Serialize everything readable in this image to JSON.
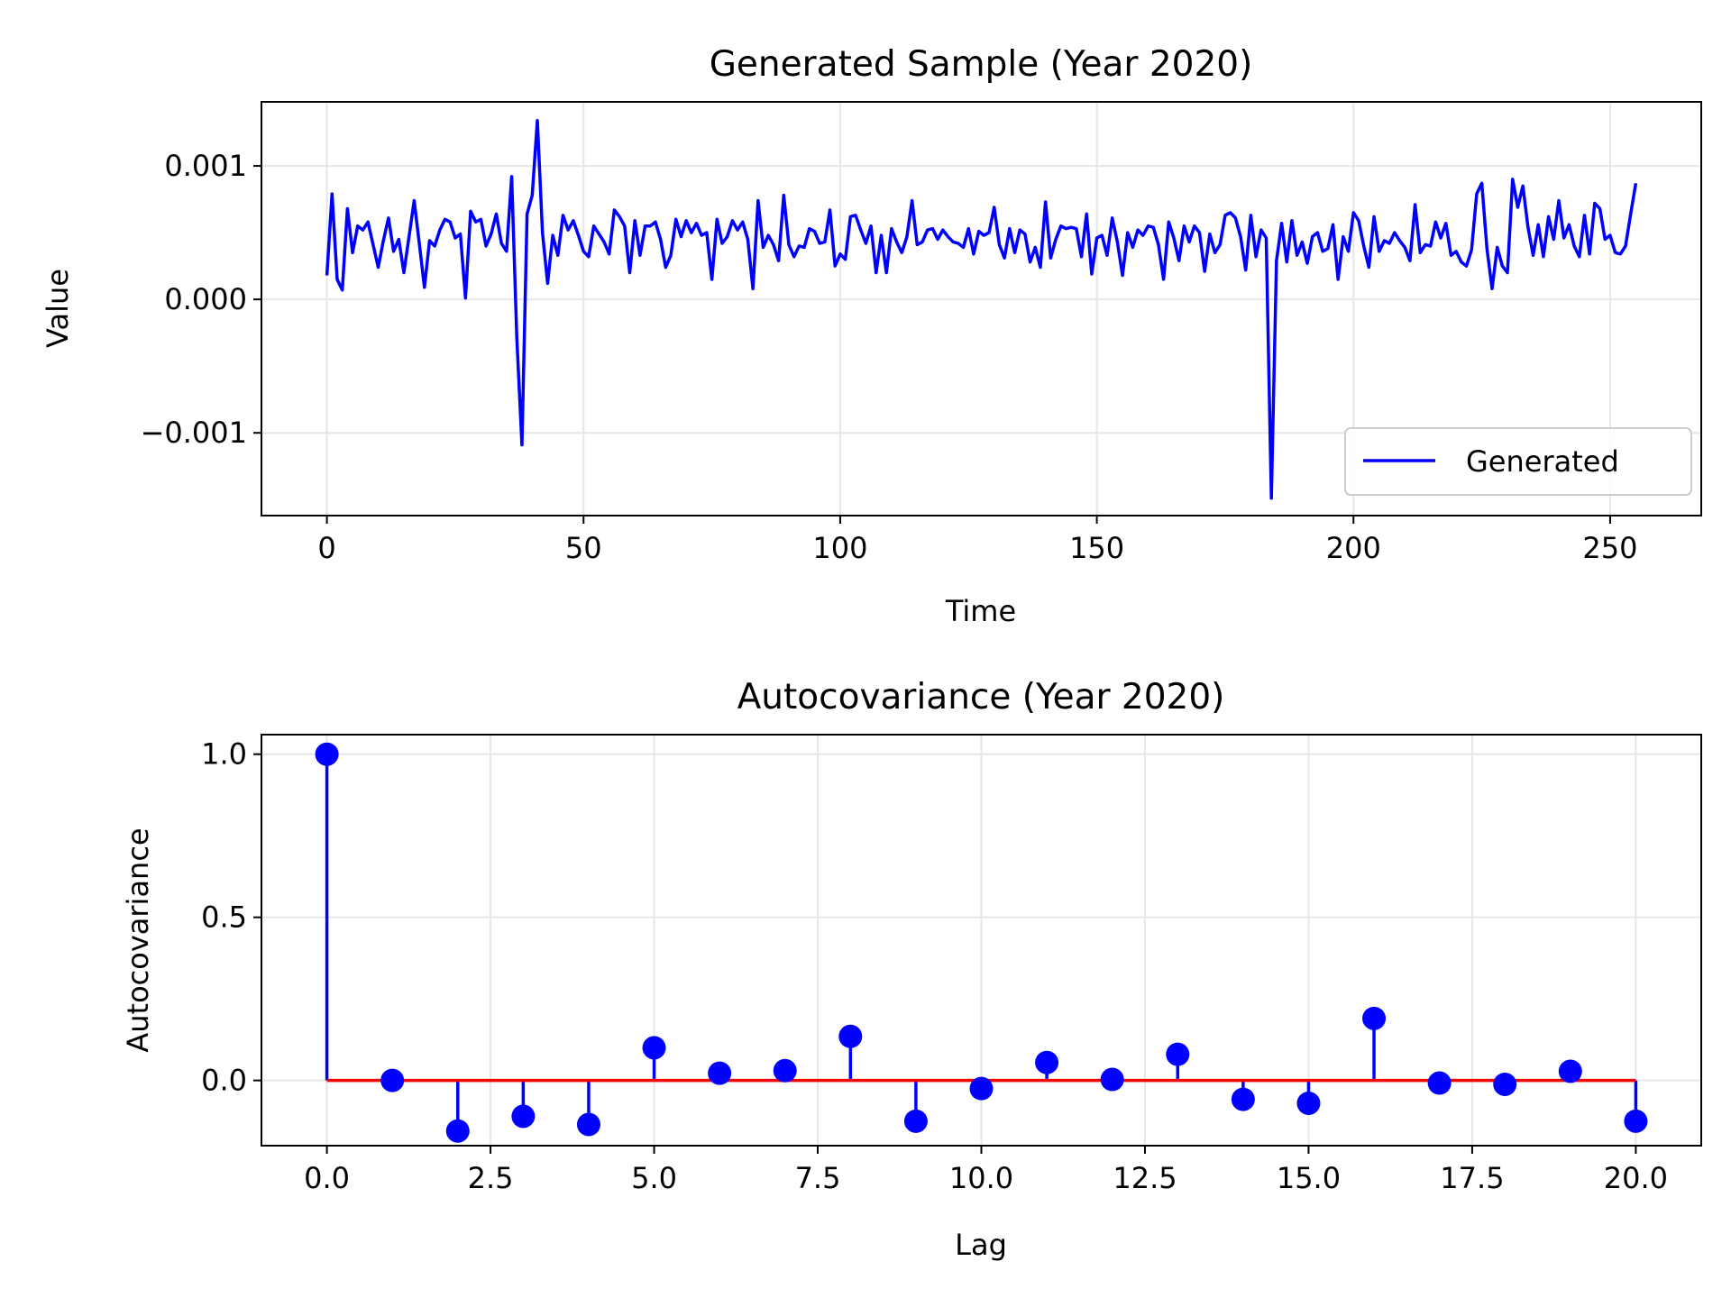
{
  "figure": {
    "background": "#ffffff"
  },
  "chart_data": [
    {
      "type": "line",
      "title": "Generated Sample (Year 2020)",
      "xlabel": "Time",
      "ylabel": "Value",
      "xlim": [
        -12.75,
        267.75
      ],
      "ylim": [
        -0.00162,
        0.00148
      ],
      "xticks": [
        0,
        50,
        100,
        150,
        200,
        250
      ],
      "xtick_labels": [
        "0",
        "50",
        "100",
        "150",
        "200",
        "250"
      ],
      "yticks": [
        0.001,
        0.0,
        -0.001
      ],
      "ytick_labels": [
        "0.001",
        "0.000",
        "−0.001"
      ],
      "grid": true,
      "legend": "lower right",
      "series": [
        {
          "name": "Generated",
          "color": "#0000ff",
          "x_start": 0,
          "x_step": 1,
          "values": [
            0.00018,
            0.00079,
            0.00015,
            7e-05,
            0.00068,
            0.00035,
            0.00055,
            0.00052,
            0.00058,
            0.00041,
            0.00024,
            0.00044,
            0.00061,
            0.00036,
            0.00045,
            0.0002,
            0.00047,
            0.00074,
            0.00042,
            9e-05,
            0.00044,
            0.0004,
            0.00052,
            0.0006,
            0.00058,
            0.00046,
            0.00049,
            1e-05,
            0.00066,
            0.00058,
            0.0006,
            0.0004,
            0.00049,
            0.00064,
            0.00042,
            0.00036,
            0.00092,
            -0.00029,
            -0.00109,
            0.00064,
            0.00078,
            0.00134,
            0.0005,
            0.00012,
            0.00048,
            0.00033,
            0.00063,
            0.00052,
            0.00059,
            0.00048,
            0.00036,
            0.00032,
            0.00055,
            0.00049,
            0.00043,
            0.00034,
            0.00067,
            0.00062,
            0.00055,
            0.0002,
            0.00059,
            0.00033,
            0.00055,
            0.00055,
            0.00058,
            0.00045,
            0.00024,
            0.00033,
            0.0006,
            0.00047,
            0.00059,
            0.0005,
            0.00057,
            0.00048,
            0.0005,
            0.00015,
            0.0006,
            0.00042,
            0.00047,
            0.00059,
            0.00052,
            0.00058,
            0.00045,
            8e-05,
            0.00074,
            0.00039,
            0.00048,
            0.00041,
            0.00029,
            0.00078,
            0.00041,
            0.00032,
            0.0004,
            0.00039,
            0.00053,
            0.00051,
            0.00042,
            0.00043,
            0.00067,
            0.00025,
            0.00034,
            0.0003,
            0.00062,
            0.00063,
            0.00052,
            0.00042,
            0.00055,
            0.0002,
            0.00048,
            0.0002,
            0.00053,
            0.00043,
            0.00035,
            0.00047,
            0.00074,
            0.00041,
            0.00043,
            0.00052,
            0.00053,
            0.00045,
            0.00052,
            0.00047,
            0.00043,
            0.00042,
            0.00039,
            0.00053,
            0.00034,
            0.00051,
            0.00048,
            0.0005,
            0.00069,
            0.00041,
            0.00031,
            0.00053,
            0.00035,
            0.00052,
            0.00049,
            0.00028,
            0.00039,
            0.00024,
            0.00073,
            0.00031,
            0.00045,
            0.00055,
            0.00053,
            0.00054,
            0.00053,
            0.00032,
            0.00064,
            0.00019,
            0.00046,
            0.00048,
            0.00033,
            0.00061,
            0.00043,
            0.00018,
            0.0005,
            0.00039,
            0.00052,
            0.00048,
            0.00055,
            0.00054,
            0.00041,
            0.00015,
            0.00058,
            0.00046,
            0.00029,
            0.00055,
            0.00043,
            0.00055,
            0.0005,
            0.00021,
            0.00049,
            0.00035,
            0.00041,
            0.00063,
            0.00065,
            0.00061,
            0.00047,
            0.00022,
            0.00063,
            0.00032,
            0.00052,
            0.00046,
            -0.00149,
            0.00029,
            0.00057,
            0.00028,
            0.00059,
            0.00033,
            0.00043,
            0.00027,
            0.00047,
            0.0005,
            0.00036,
            0.00038,
            0.00056,
            0.00015,
            0.00047,
            0.00036,
            0.00065,
            0.00059,
            0.0004,
            0.00024,
            0.00062,
            0.00036,
            0.00044,
            0.00042,
            0.0005,
            0.00044,
            0.00039,
            0.00029,
            0.00071,
            0.00035,
            0.00041,
            0.0004,
            0.00058,
            0.00046,
            0.00057,
            0.00033,
            0.00036,
            0.00028,
            0.00025,
            0.00037,
            0.00079,
            0.00087,
            0.00038,
            8e-05,
            0.00039,
            0.00025,
            0.0002,
            0.0009,
            0.00069,
            0.00085,
            0.00054,
            0.00033,
            0.00056,
            0.00032,
            0.00062,
            0.00045,
            0.00074,
            0.00046,
            0.00056,
            0.0004,
            0.00032,
            0.00063,
            0.00034,
            0.00072,
            0.00068,
            0.00045,
            0.00048,
            0.00035,
            0.00034,
            0.0004,
            0.00064,
            0.00087
          ]
        }
      ]
    },
    {
      "type": "stem",
      "title": "Autocovariance (Year 2020)",
      "xlabel": "Lag",
      "ylabel": "Autocovariance",
      "xlim": [
        -1.0,
        21.0
      ],
      "ylim": [
        -0.2,
        1.06
      ],
      "xticks": [
        0,
        2.5,
        5,
        7.5,
        10,
        12.5,
        15,
        17.5,
        20
      ],
      "xtick_labels": [
        "0.0",
        "2.5",
        "5.0",
        "7.5",
        "10.0",
        "12.5",
        "15.0",
        "17.5",
        "20.0"
      ],
      "yticks": [
        1.0,
        0.5,
        0.0
      ],
      "ytick_labels": [
        "1.0",
        "0.5",
        "0.0"
      ],
      "grid": true,
      "stem_color": "#0000ff",
      "baseline_color": "#ff0000",
      "x": [
        0,
        1,
        2,
        3,
        4,
        5,
        6,
        7,
        8,
        9,
        10,
        11,
        12,
        13,
        14,
        15,
        16,
        17,
        18,
        19,
        20
      ],
      "values": [
        1.0,
        0.0,
        -0.155,
        -0.11,
        -0.135,
        0.1,
        0.022,
        0.03,
        0.135,
        -0.125,
        -0.025,
        0.055,
        0.003,
        0.08,
        -0.058,
        -0.07,
        0.19,
        -0.008,
        -0.012,
        0.028,
        -0.125
      ]
    }
  ]
}
